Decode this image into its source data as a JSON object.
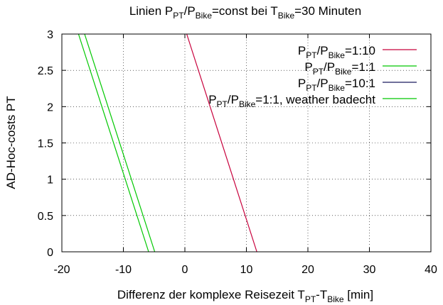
{
  "chart_data": {
    "type": "line",
    "title": {
      "prefix": "Linien  P",
      "sub1": "PT",
      "mid1": "/P",
      "sub2": "Bike",
      "mid2": "=const bei T",
      "sub3": "Bike",
      "suffix": "=30 Minuten"
    },
    "xlabel": {
      "prefix": "Differenz der komplexe Reisezeit T",
      "sub1": "PT",
      "mid": "-T",
      "sub2": "Bike",
      "suffix": " [min]"
    },
    "ylabel": "AD-Hoc-costs PT",
    "xlim": [
      -20,
      40
    ],
    "ylim": [
      0,
      3
    ],
    "xticks": [
      -20,
      -10,
      0,
      10,
      20,
      30,
      40
    ],
    "yticks": [
      0,
      0.5,
      1,
      1.5,
      2,
      2.5,
      3
    ],
    "xtick_labels": [
      "-20",
      "-10",
      "0",
      "10",
      "20",
      "30",
      "40"
    ],
    "ytick_labels": [
      "0",
      "0.5",
      "1",
      "1.5",
      "2",
      "2.5",
      "3"
    ],
    "grid": true,
    "legend_position": "top-right",
    "series": [
      {
        "name": "P_PT/P_Bike=1:10",
        "legend": {
          "pre": "P",
          "s1": "PT",
          "mid": "/P",
          "s2": "Bike",
          "post": "=1:10"
        },
        "color": "#c8003c",
        "x": [
          0.3,
          11.7
        ],
        "y": [
          3,
          0
        ]
      },
      {
        "name": "P_PT/P_Bike=1:1",
        "legend": {
          "pre": "P",
          "s1": "PT",
          "mid": "/P",
          "s2": "Bike",
          "post": "=1:1"
        },
        "color": "#00c800",
        "x": [
          -17.3,
          -5.9
        ],
        "y": [
          3,
          0
        ]
      },
      {
        "name": "P_PT/P_Bike=10:1",
        "legend": {
          "pre": "P",
          "s1": "PT",
          "mid": "/P",
          "s2": "Bike",
          "post": "=10:1"
        },
        "color": "#1a1a5e",
        "x": [],
        "y": []
      },
      {
        "name": "P_PT/P_Bike=1:1, weather badecht",
        "legend": {
          "pre": "P",
          "s1": "PT",
          "mid": "/P",
          "s2": "Bike",
          "post": "=1:1, weather badecht"
        },
        "color": "#00c800",
        "x": [
          -16.3,
          -4.9
        ],
        "y": [
          3,
          0
        ]
      }
    ]
  }
}
